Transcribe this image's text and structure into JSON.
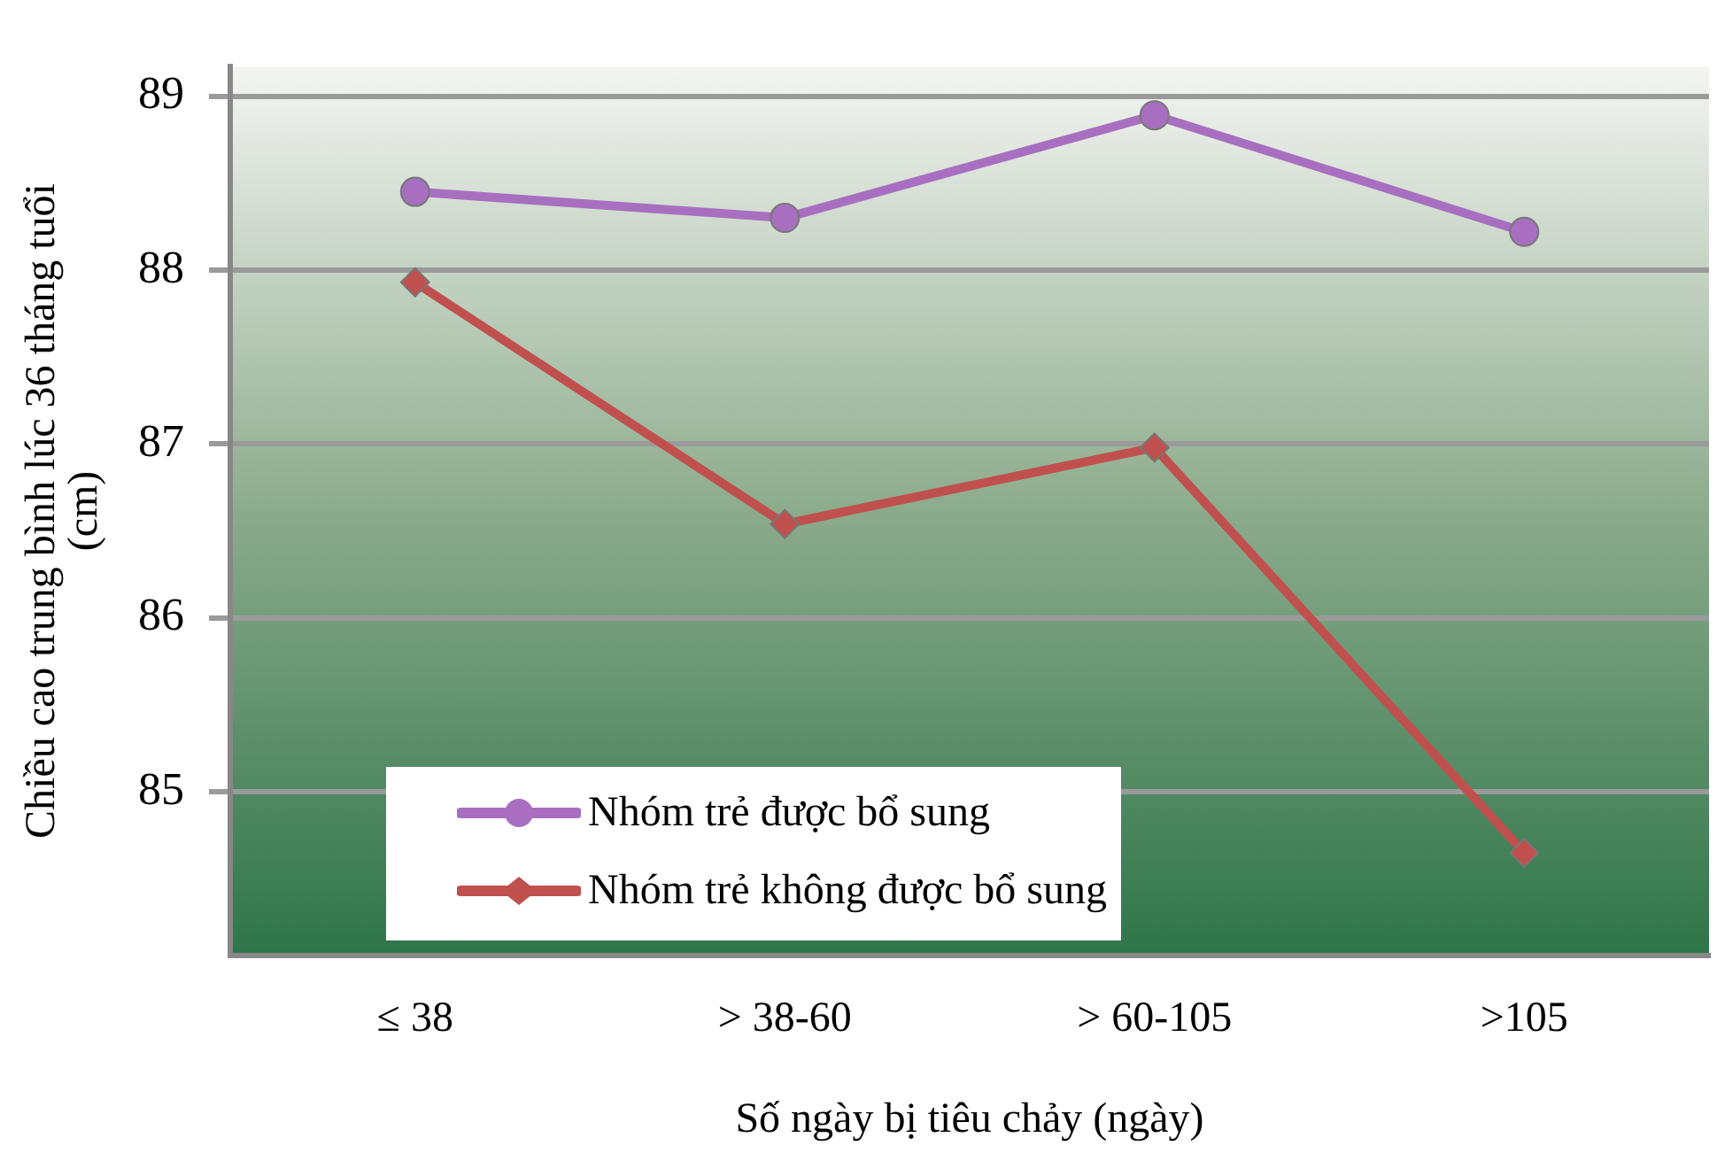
{
  "chart_data": {
    "type": "line",
    "xlabel": "Số ngày bị tiêu chảy (ngày)",
    "ylabel": "Chiều cao trung bình lúc 36 tháng tuổi (cm)",
    "categories": [
      "≤ 38",
      "> 38-60",
      "> 60-105",
      ">105"
    ],
    "series": [
      {
        "name": "Nhóm trẻ được bổ sung",
        "color": "#a86fc0",
        "marker": "circle",
        "values": [
          88.45,
          88.3,
          88.89,
          88.22
        ]
      },
      {
        "name": "Nhóm trẻ không được bổ sung",
        "color": "#c0504d",
        "marker": "diamond",
        "values": [
          87.93,
          86.54,
          86.98,
          84.65
        ]
      }
    ],
    "ylim": [
      84.06,
      89.17
    ],
    "yticks": [
      85,
      86,
      87,
      88,
      89
    ],
    "grid": "y",
    "legend": "bottom left"
  }
}
